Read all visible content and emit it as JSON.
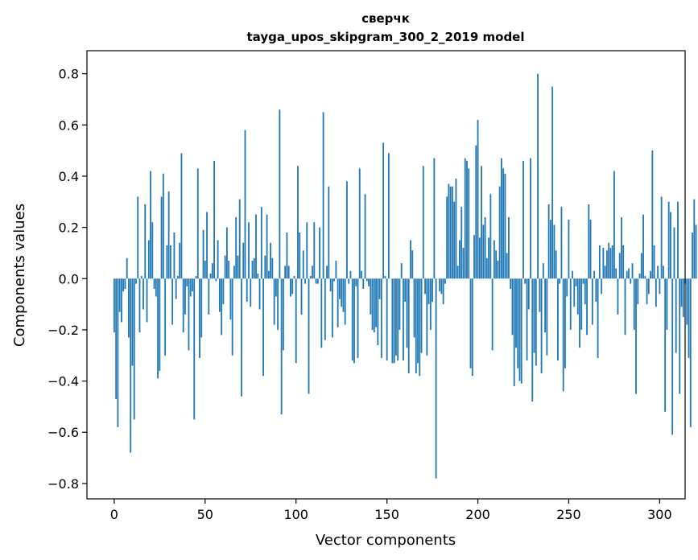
{
  "chart_data": {
    "type": "bar",
    "title": "сверчк",
    "subtitle": "tayga_upos_skipgram_300_2_2019 model",
    "xlabel": "Vector components",
    "ylabel": "Components values",
    "xlim": [
      -15,
      314
    ],
    "ylim": [
      -0.86,
      0.89
    ],
    "xticks": [
      0,
      50,
      100,
      150,
      200,
      250,
      300
    ],
    "yticks": [
      -0.8,
      -0.6,
      -0.4,
      -0.2,
      0.0,
      0.2,
      0.4,
      0.6,
      0.8
    ],
    "xtick_labels": [
      "0",
      "50",
      "100",
      "150",
      "200",
      "250",
      "300"
    ],
    "ytick_labels": [
      "−0.8",
      "−0.6",
      "−0.4",
      "−0.2",
      "0.0",
      "0.2",
      "0.4",
      "0.6",
      "0.8"
    ],
    "grid": false,
    "bar_color": "#1f77b4",
    "values": [
      -0.21,
      -0.47,
      -0.58,
      -0.13,
      -0.17,
      -0.05,
      -0.04,
      0.08,
      -0.23,
      -0.68,
      -0.34,
      -0.55,
      -0.02,
      0.32,
      -0.21,
      0.01,
      -0.12,
      0.29,
      -0.17,
      0.15,
      0.42,
      0.22,
      -0.04,
      -0.07,
      -0.39,
      -0.36,
      0.32,
      0.41,
      -0.3,
      0.13,
      0.34,
      0.13,
      -0.18,
      0.18,
      -0.08,
      0.01,
      0.14,
      0.49,
      -0.21,
      -0.14,
      -0.03,
      -0.28,
      -0.07,
      -0.05,
      -0.55,
      0.01,
      0.43,
      -0.31,
      -0.23,
      0.19,
      0.07,
      0.26,
      -0.14,
      0.02,
      0.06,
      0.46,
      -0.01,
      0.15,
      -0.13,
      -0.22,
      -0.1,
      0.09,
      0.2,
      0.07,
      -0.16,
      -0.3,
      0.05,
      0.24,
      0.09,
      0.31,
      -0.46,
      0.14,
      0.58,
      -0.09,
      0.22,
      -0.11,
      0.07,
      0.08,
      0.25,
      0.02,
      -0.12,
      0.28,
      -0.38,
      0.09,
      0.25,
      0.03,
      0.14,
      0.08,
      -0.18,
      -0.07,
      -0.2,
      0.66,
      -0.53,
      -0.28,
      0.05,
      0.18,
      0.05,
      -0.07,
      -0.06,
      0.01,
      -0.33,
      0.44,
      0.18,
      -0.14,
      0.11,
      -0.02,
      0.22,
      -0.45,
      0.01,
      0.05,
      0.22,
      -0.02,
      -0.02,
      0.2,
      -0.27,
      0.65,
      -0.24,
      0.05,
      0.36,
      -0.05,
      -0.23,
      -0.01,
      0.07,
      -0.19,
      -0.08,
      -0.11,
      -0.13,
      -0.18,
      0.38,
      -0.02,
      0.03,
      -0.32,
      -0.33,
      -0.03,
      -0.31,
      0.43,
      0.03,
      -0.04,
      0.33,
      -0.01,
      -0.03,
      -0.14,
      -0.2,
      -0.21,
      -0.19,
      -0.26,
      -0.08,
      -0.31,
      0.53,
      0.01,
      -0.32,
      0.49,
      0.0,
      -0.33,
      -0.33,
      -0.3,
      -0.32,
      -0.2,
      0.06,
      -0.32,
      -0.09,
      -0.27,
      -0.37,
      0.15,
      0.11,
      -0.23,
      -0.37,
      -0.33,
      -0.38,
      -0.29,
      0.44,
      -0.06,
      -0.3,
      -0.1,
      -0.2,
      -0.09,
      0.47,
      -0.78,
      0.0,
      -0.05,
      -0.06,
      -0.1,
      -0.02,
      0.32,
      0.37,
      0.36,
      0.36,
      0.3,
      0.39,
      0.05,
      0.15,
      0.28,
      0.12,
      0.47,
      0.46,
      0.43,
      -0.35,
      -0.38,
      0.17,
      0.52,
      0.62,
      0.16,
      0.44,
      0.21,
      0.24,
      0.08,
      0.16,
      0.33,
      -0.28,
      0.15,
      0.11,
      0.07,
      0.36,
      0.47,
      0.43,
      0.41,
      0.1,
      0.24,
      -0.04,
      -0.22,
      -0.42,
      -0.27,
      -0.35,
      -0.4,
      -0.41,
      0.46,
      -0.02,
      -0.32,
      -0.12,
      0.47,
      -0.48,
      -0.29,
      -0.34,
      0.8,
      -0.13,
      -0.37,
      0.06,
      -0.21,
      -0.3,
      0.29,
      0.23,
      0.75,
      0.21,
      0.11,
      -0.32,
      -0.02,
      0.28,
      -0.44,
      -0.35,
      -0.07,
      0.23,
      -0.2,
      0.03,
      -0.11,
      -0.03,
      -0.14,
      -0.27,
      -0.2,
      -0.02,
      -0.1,
      -0.22,
      0.29,
      0.23,
      -0.18,
      0.03,
      -0.09,
      -0.31,
      0.13,
      -0.06,
      0.12,
      0.05,
      0.11,
      0.14,
      0.12,
      0.13,
      0.42,
      0.04,
      -0.14,
      0.1,
      0.24,
      0.13,
      -0.22,
      0.03,
      0.04,
      -0.02,
      0.06,
      -0.2,
      -0.45,
      -0.1,
      0.02,
      0.1,
      0.25,
      0.01,
      -0.1,
      -0.06,
      0.03,
      0.5,
      0.13,
      -0.11,
      0.05,
      -0.06,
      0.32,
      0.05,
      -0.52,
      -0.2,
      0.3,
      0.26,
      -0.61,
      0.2,
      -0.29,
      0.3,
      -0.45,
      -0.11,
      -0.15,
      -0.02,
      -0.18,
      -0.31,
      -0.58,
      0.18,
      0.31,
      0.21
    ]
  }
}
